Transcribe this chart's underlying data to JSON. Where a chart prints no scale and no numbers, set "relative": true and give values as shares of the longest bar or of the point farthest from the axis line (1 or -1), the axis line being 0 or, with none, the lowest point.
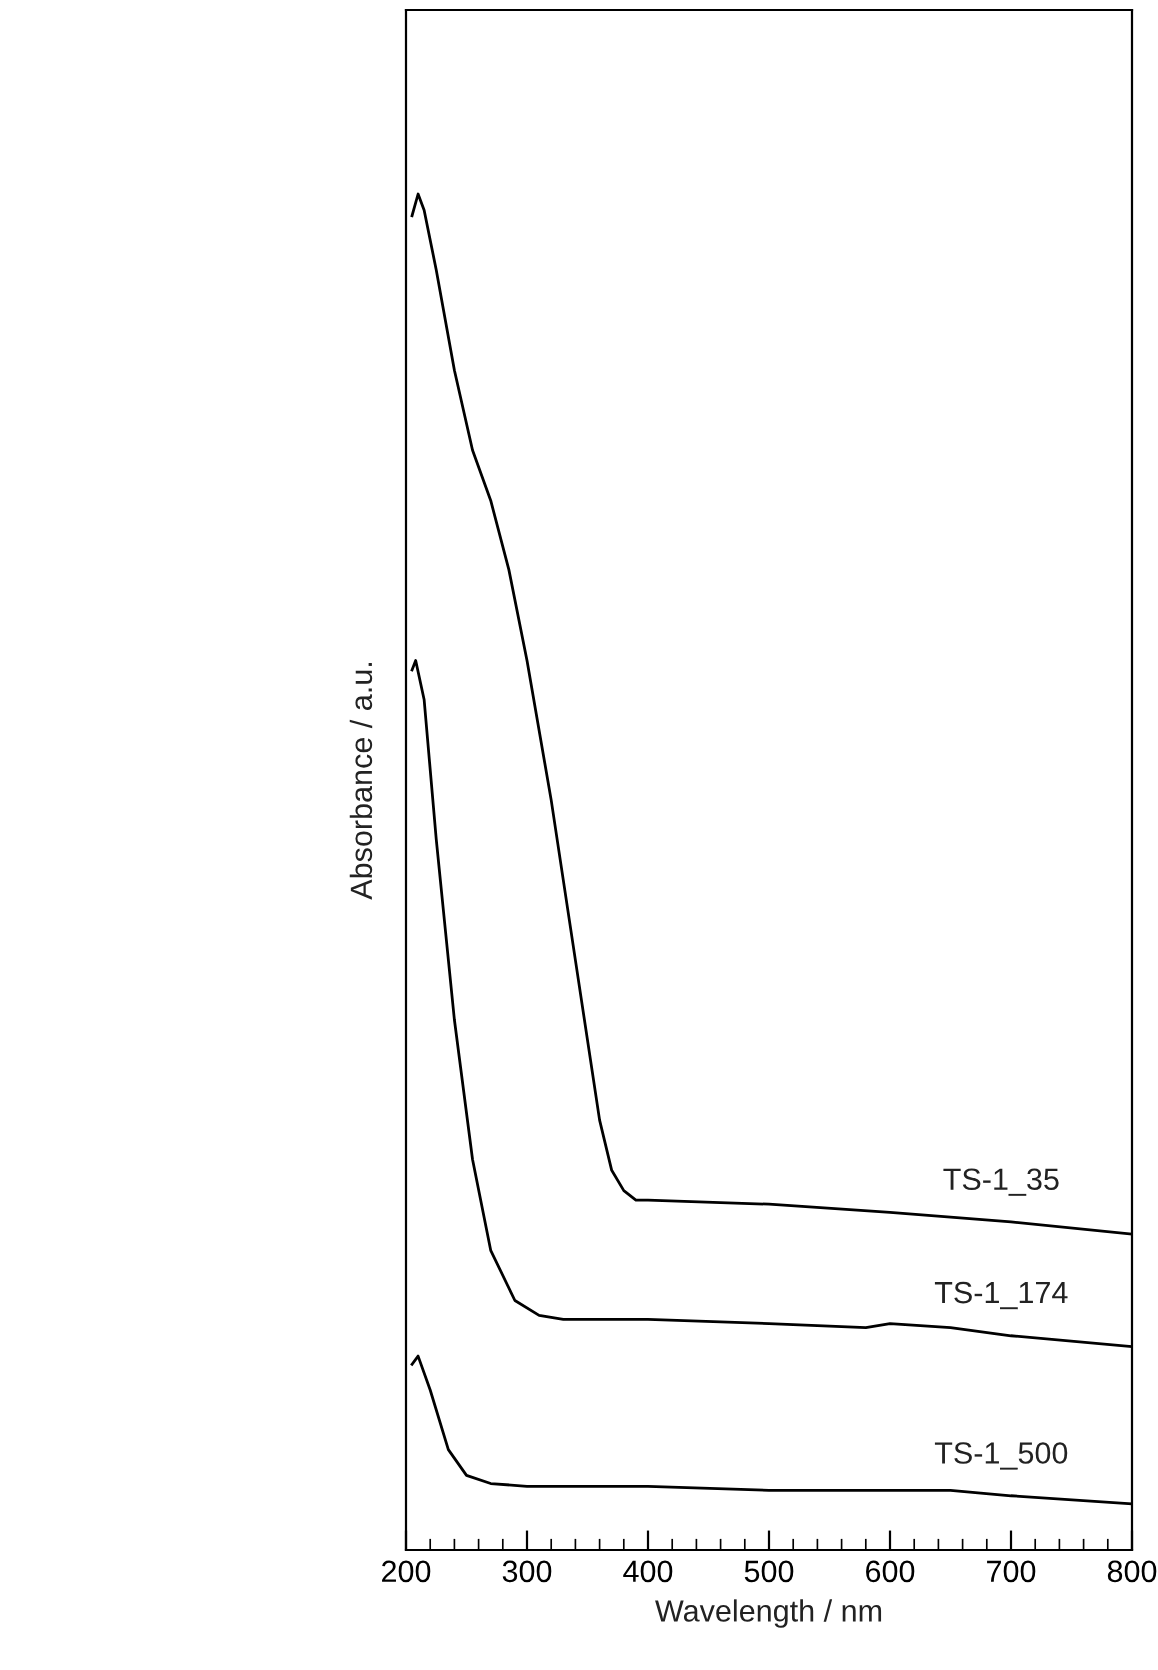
{
  "chart_data": {
    "type": "line",
    "relative": true,
    "xlabel": "Wavelength / nm",
    "ylabel": "Absorbance / a.u.",
    "xlim": [
      200,
      800
    ],
    "xticks": [
      200,
      300,
      400,
      500,
      600,
      700,
      800
    ],
    "grid": false,
    "legend": false,
    "tick_labels": "x",
    "series": [
      {
        "name": "TS-1_35",
        "color": "#000000",
        "x": [
          205,
          210,
          215,
          225,
          240,
          255,
          270,
          285,
          300,
          320,
          340,
          360,
          370,
          380,
          390,
          400,
          500,
          600,
          700,
          800
        ],
        "values": [
          0.984,
          1,
          0.988,
          0.944,
          0.87,
          0.811,
          0.774,
          0.723,
          0.656,
          0.553,
          0.435,
          0.317,
          0.28,
          0.265,
          0.258,
          0.258,
          0.255,
          0.249,
          0.242,
          0.233
        ]
      },
      {
        "name": "TS-1_174",
        "color": "#000000",
        "x": [
          205,
          208,
          215,
          225,
          240,
          255,
          270,
          290,
          310,
          330,
          400,
          500,
          580,
          600,
          650,
          700,
          800
        ],
        "values": [
          0.649,
          0.656,
          0.627,
          0.524,
          0.391,
          0.288,
          0.221,
          0.184,
          0.173,
          0.17,
          0.17,
          0.167,
          0.164,
          0.167,
          0.164,
          0.158,
          0.15
        ]
      },
      {
        "name": "TS-1_500",
        "color": "#000000",
        "x": [
          205,
          210,
          220,
          235,
          250,
          270,
          300,
          400,
          500,
          600,
          650,
          700,
          800
        ],
        "values": [
          0.137,
          0.143,
          0.118,
          0.074,
          0.055,
          0.049,
          0.047,
          0.047,
          0.044,
          0.044,
          0.044,
          0.04,
          0.034
        ]
      }
    ]
  }
}
